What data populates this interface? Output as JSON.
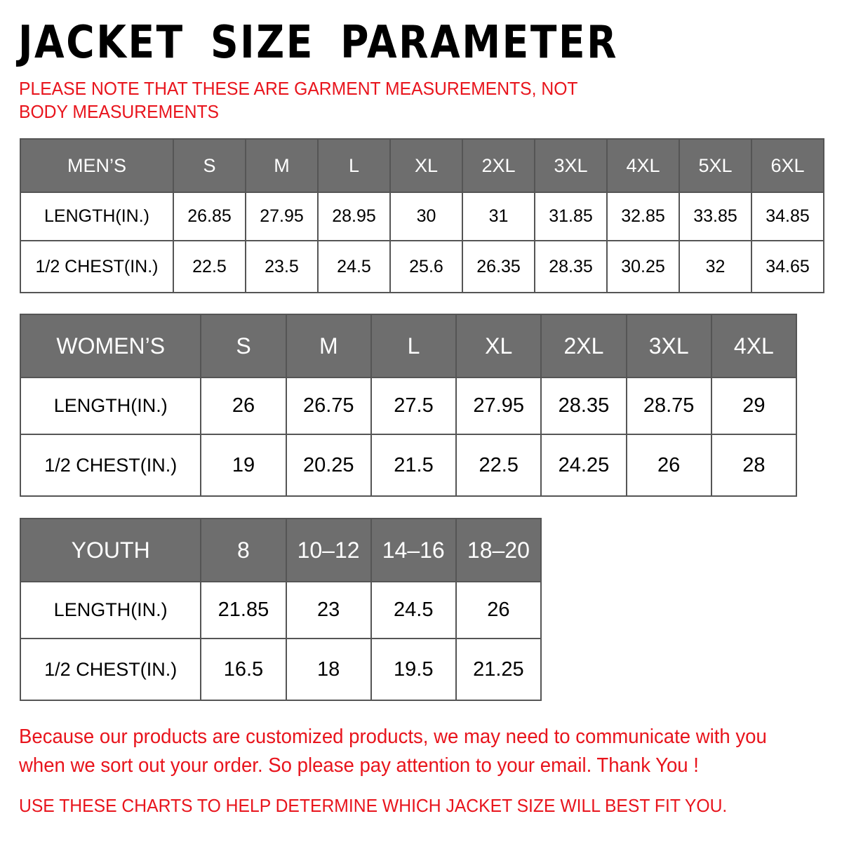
{
  "title": "JACKET SIZE PARAMETER",
  "note": "PLEASE NOTE THAT THESE ARE GARMENT MEASUREMENTS, NOT BODY MEASUREMENTS",
  "tables": [
    {
      "label": "MEN’S",
      "sizes": [
        "S",
        "M",
        "L",
        "XL",
        "2XL",
        "3XL",
        "4XL",
        "5XL",
        "6XL"
      ],
      "rows": [
        {
          "label": "LENGTH(IN.)",
          "values": [
            "26.85",
            "27.95",
            "28.95",
            "30",
            "31",
            "31.85",
            "32.85",
            "33.85",
            "34.85"
          ]
        },
        {
          "label": "1/2 CHEST(IN.)",
          "values": [
            "22.5",
            "23.5",
            "24.5",
            "25.6",
            "26.35",
            "28.35",
            "30.25",
            "32",
            "34.65"
          ]
        }
      ]
    },
    {
      "label": "WOMEN’S",
      "sizes": [
        "S",
        "M",
        "L",
        "XL",
        "2XL",
        "3XL",
        "4XL"
      ],
      "rows": [
        {
          "label": "LENGTH(IN.)",
          "values": [
            "26",
            "26.75",
            "27.5",
            "27.95",
            "28.35",
            "28.75",
            "29"
          ]
        },
        {
          "label": "1/2 CHEST(IN.)",
          "values": [
            "19",
            "20.25",
            "21.5",
            "22.5",
            "24.25",
            "26",
            "28"
          ]
        }
      ]
    },
    {
      "label": "YOUTH",
      "sizes": [
        "8",
        "10–12",
        "14–16",
        "18–20"
      ],
      "rows": [
        {
          "label": "LENGTH(IN.)",
          "values": [
            "21.85",
            "23",
            "24.5",
            "26"
          ]
        },
        {
          "label": "1/2 CHEST(IN.)",
          "values": [
            "16.5",
            "18",
            "19.5",
            "21.25"
          ]
        }
      ]
    }
  ],
  "footer": {
    "line1": "Because our products are customized products, we may need to communicate with you",
    "line2": "when we sort out your order. So please pay attention to your email. Thank You !",
    "line3": "USE THESE CHARTS TO HELP DETERMINE WHICH JACKET SIZE WILL BEST FIT YOU."
  },
  "colors": {
    "header_bg": "#6e6e6e",
    "accent_red": "#e8141c"
  }
}
